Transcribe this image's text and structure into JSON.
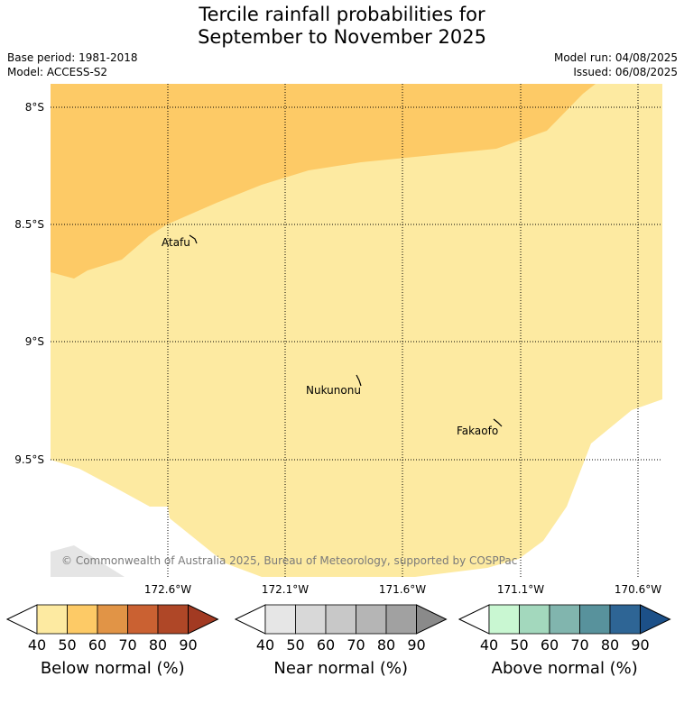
{
  "title_line1": "Tercile rainfall probabilities for",
  "title_line2": "September to November 2025",
  "meta": {
    "base_period": "Base period: 1981-2018",
    "model": "Model: ACCESS-S2",
    "model_run": "Model run: 04/08/2025",
    "issued": "Issued: 06/08/2025"
  },
  "map": {
    "lat_labels": [
      "8°S",
      "8.5°S",
      "9°S",
      "9.5°S"
    ],
    "lon_labels": [
      "172.6°W",
      "172.1°W",
      "171.6°W",
      "171.1°W",
      "170.6°W"
    ],
    "places": [
      "Atafu",
      "Nukunonu",
      "Fakaofo"
    ],
    "copyright": "© Commonwealth of Australia 2025, Bureau of Meteorology, supported by COSPPac",
    "colors": {
      "below_40_50": "#fdeaa1",
      "below_50_60": "#fdca66",
      "grey_patch": "#e5e5e5"
    }
  },
  "colorbars": [
    {
      "name": "below",
      "label": "Below normal (%)",
      "ticks": [
        "40",
        "50",
        "60",
        "70",
        "80",
        "90"
      ],
      "colors": [
        "#fdeaa1",
        "#fdca66",
        "#e19446",
        "#ca6132",
        "#af4727",
        "#a23a22"
      ]
    },
    {
      "name": "near",
      "label": "Near normal (%)",
      "ticks": [
        "40",
        "50",
        "60",
        "70",
        "80",
        "90"
      ],
      "colors": [
        "#e6e6e6",
        "#d8d8d8",
        "#c8c8c8",
        "#b5b5b5",
        "#a1a1a1",
        "#8a8a8a"
      ]
    },
    {
      "name": "above",
      "label": "Above normal (%)",
      "ticks": [
        "40",
        "50",
        "60",
        "70",
        "80",
        "90"
      ],
      "colors": [
        "#c9f7d2",
        "#a3d8bd",
        "#81b5ae",
        "#58929c",
        "#2e6595",
        "#1c5088"
      ]
    }
  ]
}
